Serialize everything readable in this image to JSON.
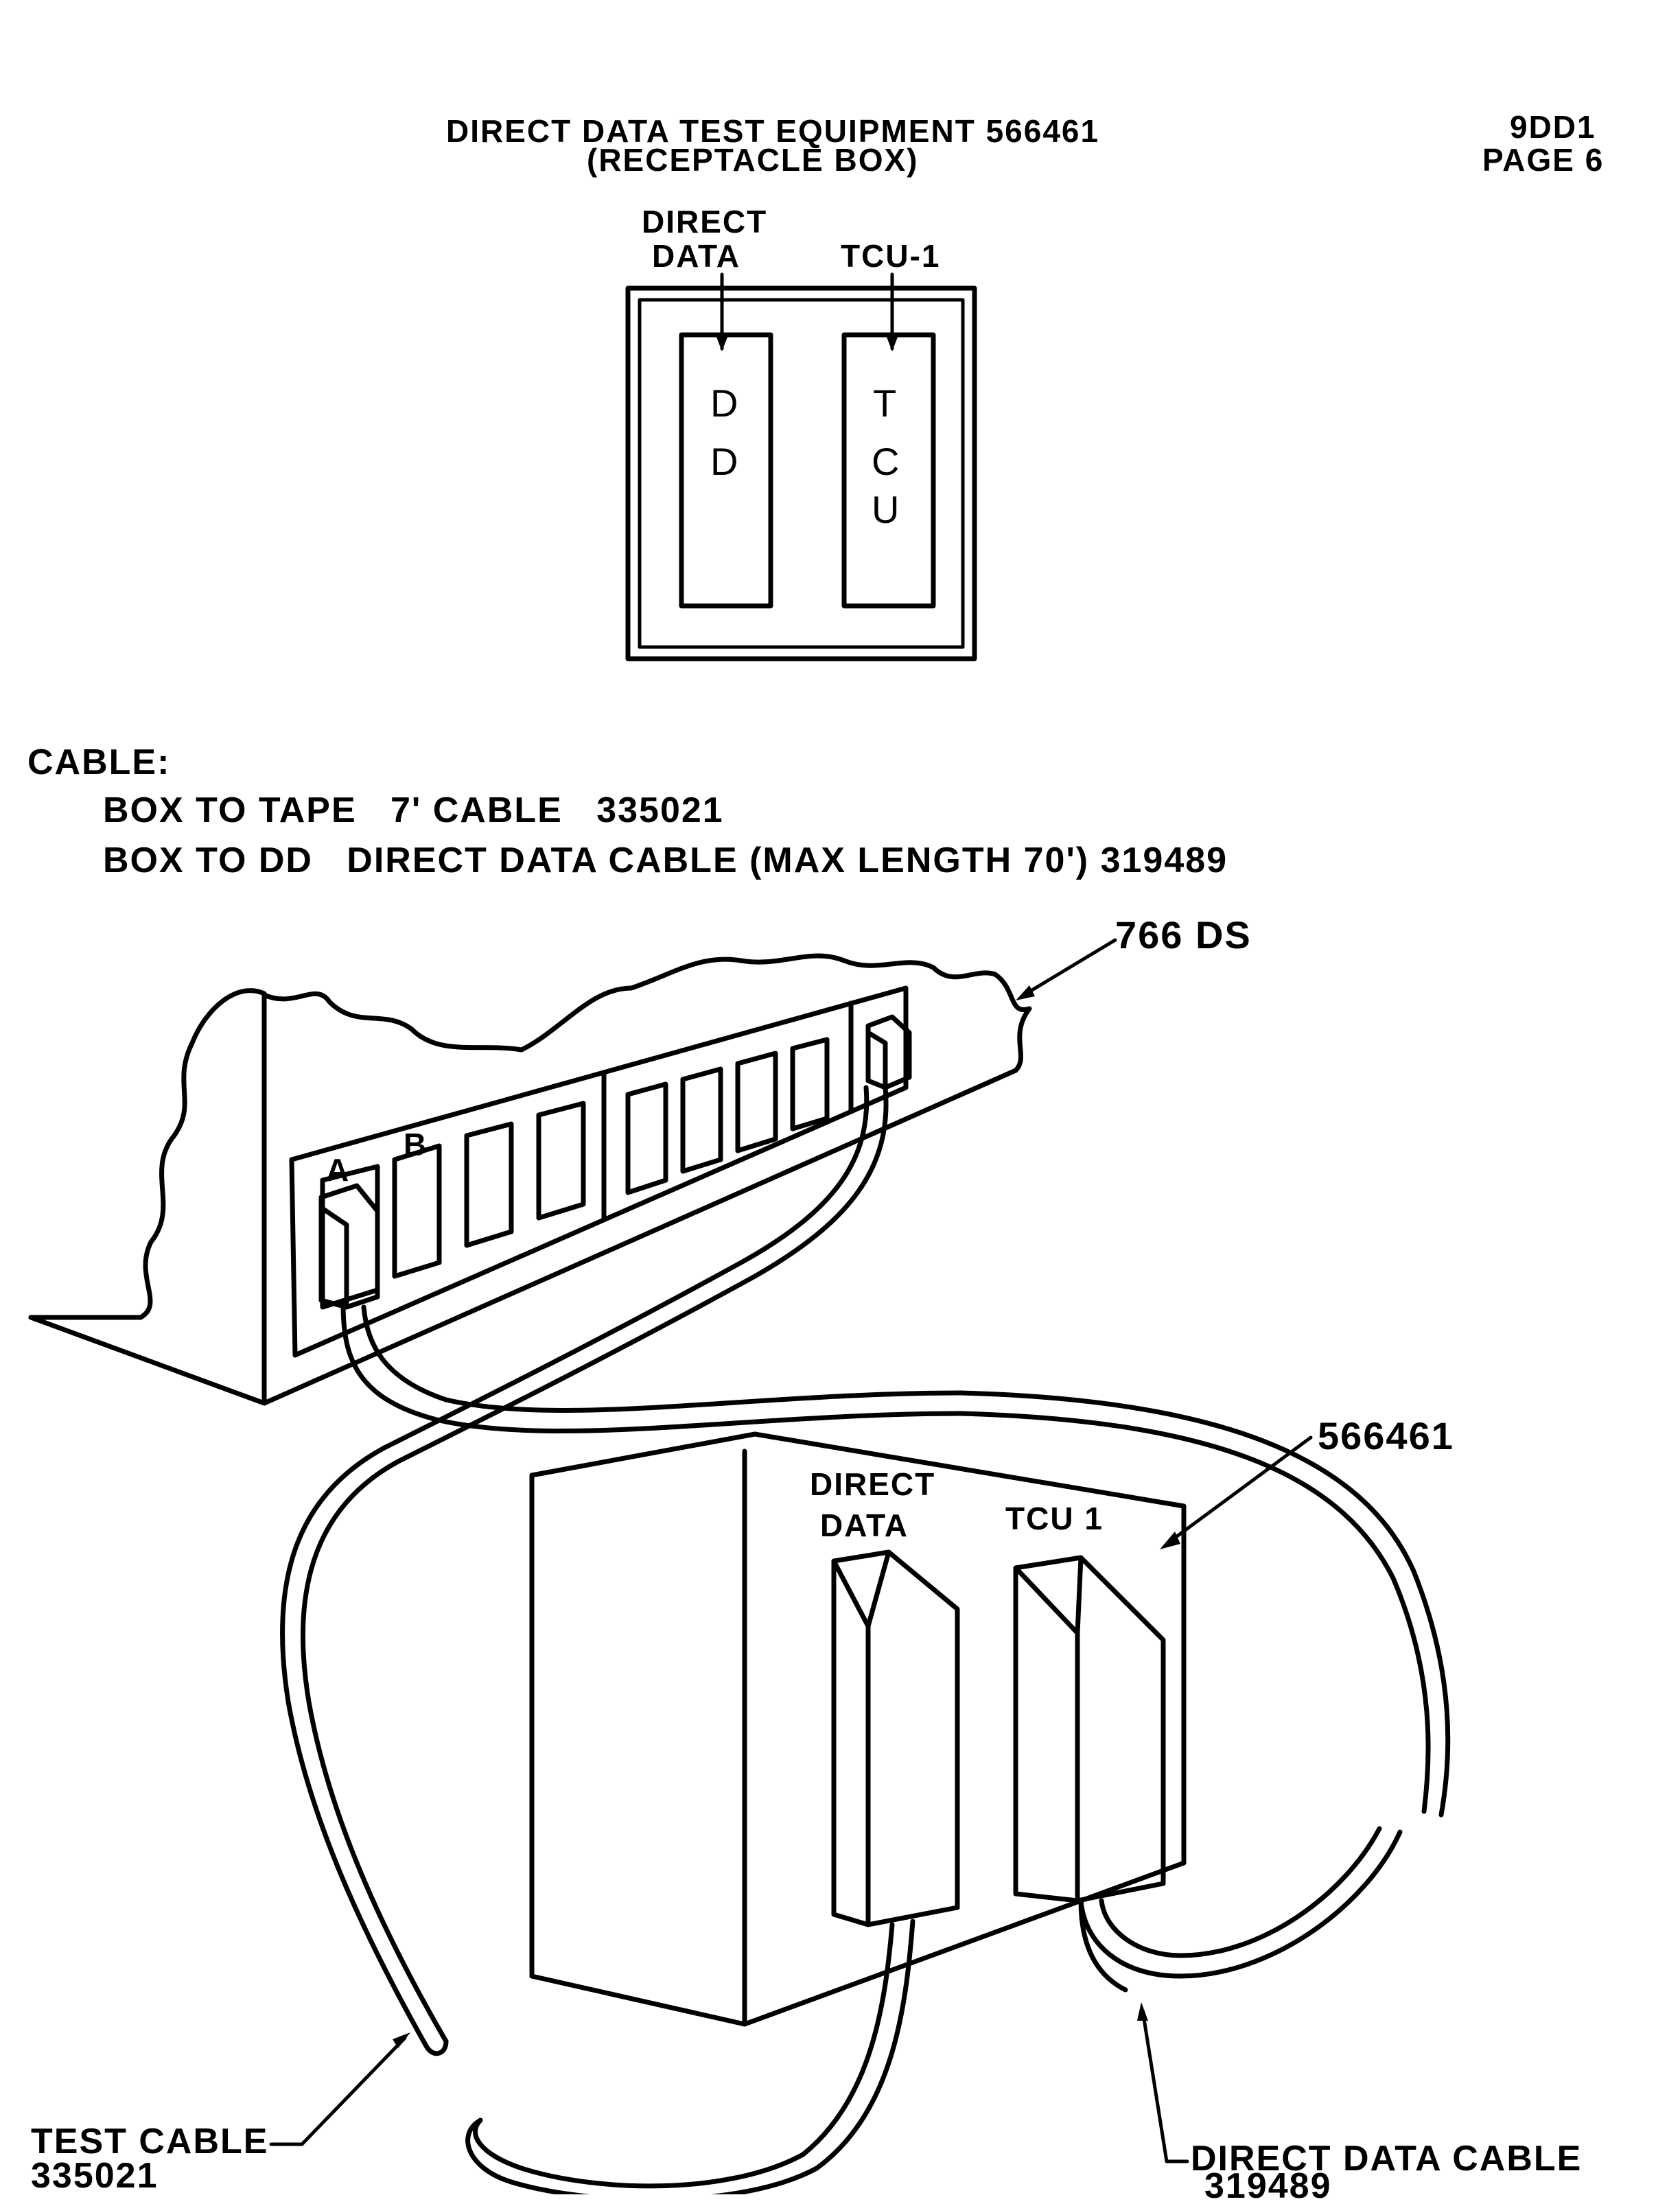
{
  "header": {
    "title": "DIRECT DATA TEST EQUIPMENT 566461",
    "subtitle": "(RECEPTACLE BOX)",
    "doc_id": "9DD1",
    "page_label": "PAGE 6"
  },
  "receptacle_box": {
    "label_left_line1": "DIRECT",
    "label_left_line2": "DATA",
    "label_right": "TCU-1",
    "left_slot_letters": [
      "D",
      "D"
    ],
    "right_slot_letters": [
      "T",
      "C",
      "U"
    ]
  },
  "cable_notes": {
    "heading": "CABLE:",
    "line1": "BOX TO TAPE   7' CABLE   335021",
    "line2": "BOX TO DD   DIRECT DATA CABLE (MAX LENGTH 70') 319489"
  },
  "illustration": {
    "panel_callout": "766 DS",
    "slot_a": "A",
    "slot_b": "B",
    "box_callout": "566461",
    "box_label_left_line1": "DIRECT",
    "box_label_left_line2": "DATA",
    "box_label_right": "TCU 1",
    "test_cable_line1": "TEST CABLE",
    "test_cable_line2": "335021",
    "dd_cable_line1": "DIRECT DATA CABLE",
    "dd_cable_line2": "319489"
  }
}
